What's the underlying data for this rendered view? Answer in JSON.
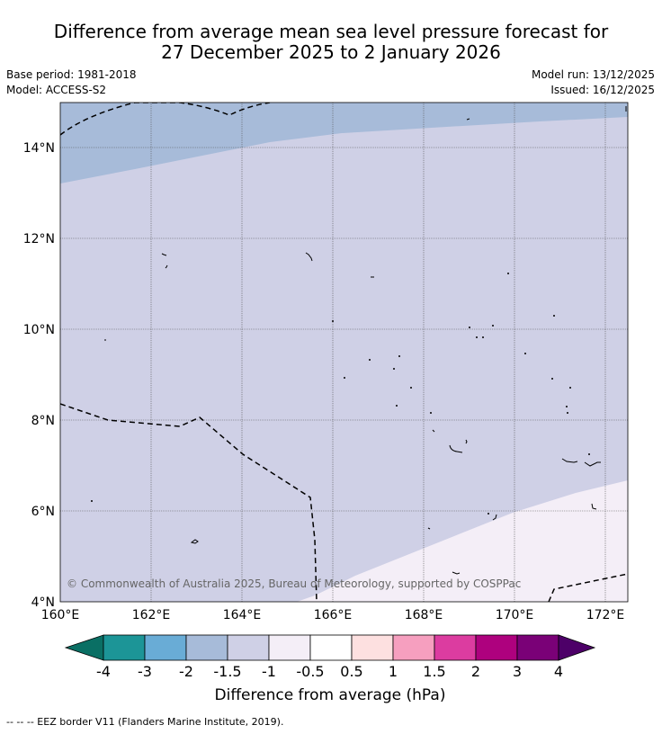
{
  "title": {
    "line1": "Difference from average mean sea level pressure forecast for",
    "line2": "27 December 2025 to 2 January 2026"
  },
  "info": {
    "base_period": "Base period: 1981-2018",
    "model": "Model: ACCESS-S2",
    "model_run": "Model run: 13/12/2025",
    "issued": "Issued: 16/12/2025"
  },
  "map": {
    "lon_ticks": [
      "160°E",
      "162°E",
      "164°E",
      "166°E",
      "168°E",
      "170°E",
      "172°E"
    ],
    "lat_ticks": [
      "14°N",
      "12°N",
      "10°N",
      "8°N",
      "6°N",
      "4°N"
    ],
    "copyright": "© Commonwealth of Australia 2025, Bureau of Meteorology, supported by COSPPac",
    "field_colors": {
      "band_-1.5_-1": "#cfd0e6",
      "band_-2_-1.5": "#a7bbd9",
      "band_-1_-0.5": "#f4eef7"
    }
  },
  "legend": {
    "label": "Difference from average (hPa)",
    "ticks": [
      "-4",
      "-3",
      "-2",
      "-1.5",
      "-1",
      "-0.5",
      "0.5",
      "1",
      "1.5",
      "2",
      "3",
      "4"
    ],
    "colors": [
      "#0a6f64",
      "#1c9597",
      "#69acd6",
      "#a7bbd9",
      "#cfd0e6",
      "#f4eef7",
      "#ffffff",
      "#fde0e0",
      "#f69fbf",
      "#dc3ca0",
      "#ae017e",
      "#7a0177",
      "#4d0068"
    ]
  },
  "footnote": "--  --  -- EEZ border V11 (Flanders Marine Institute, 2019)."
}
